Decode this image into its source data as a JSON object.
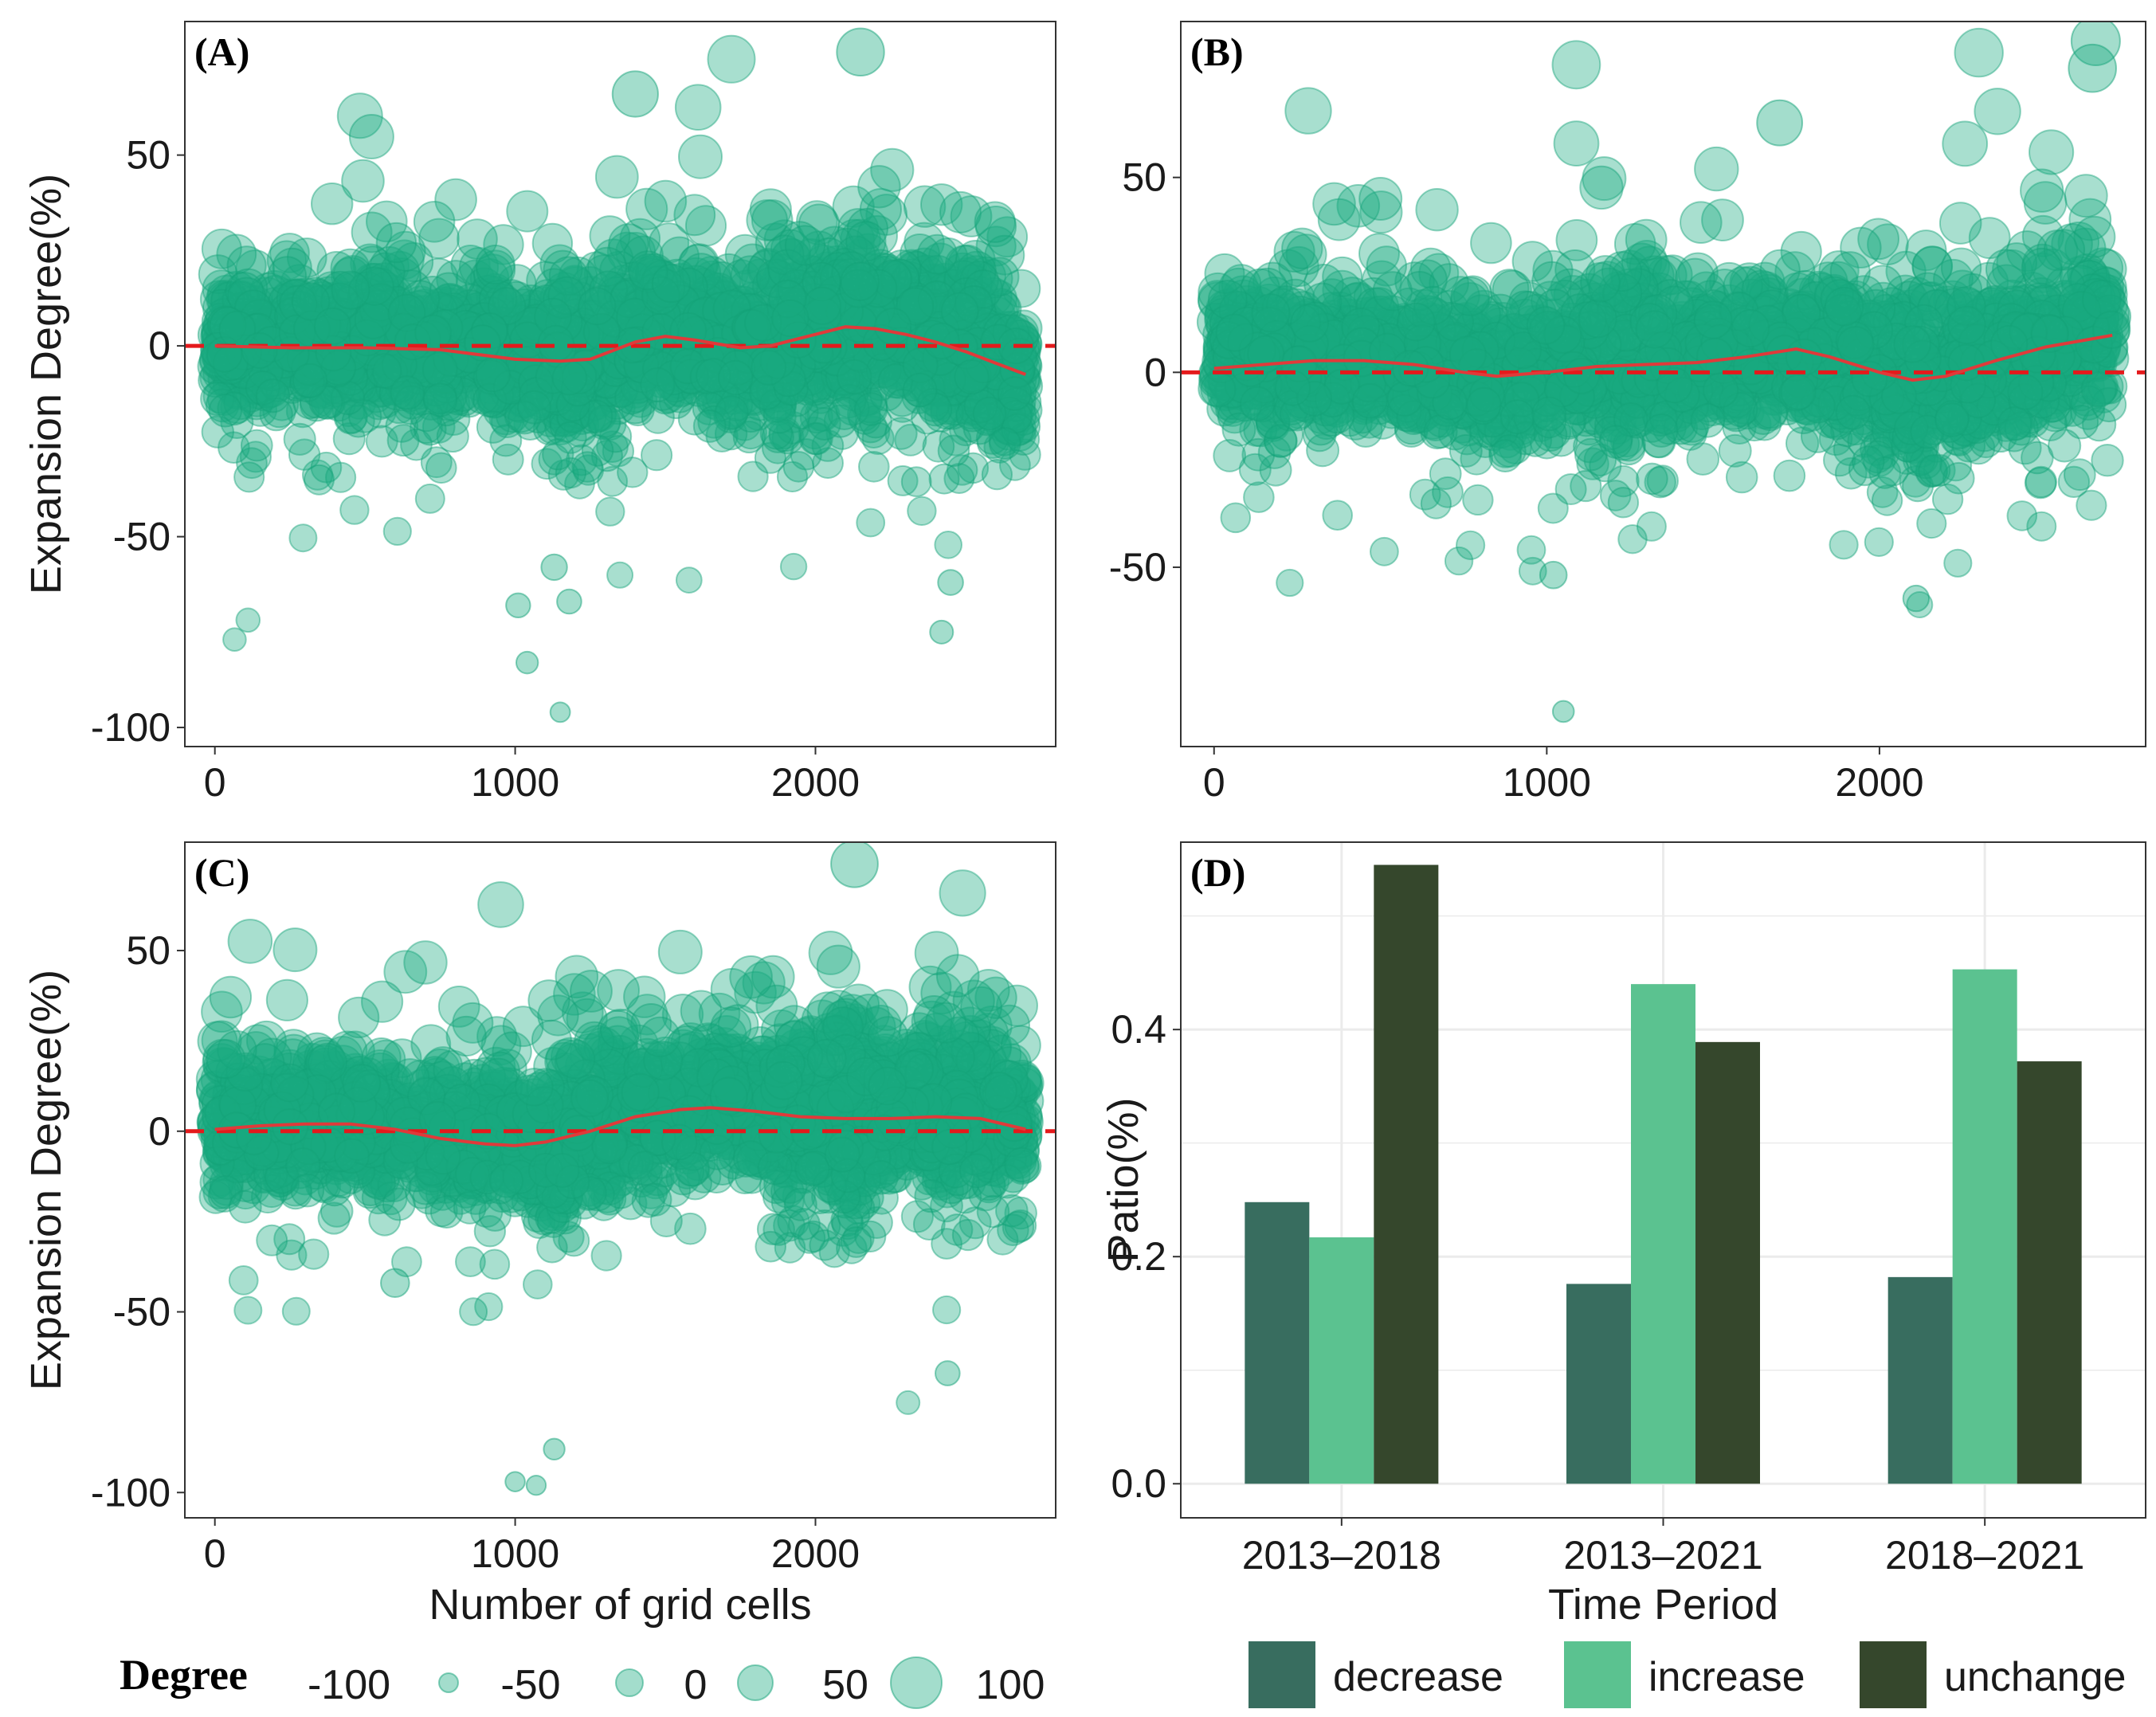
{
  "colors": {
    "point_fill": "#1aab80",
    "point_stroke": "#14a278",
    "smooth_line": "#e03a3a",
    "zero_line": "#e41a1c",
    "decrease": "#386d5f",
    "increase": "#5bc290",
    "unchange": "#35472c",
    "grid": "#ebebeb"
  },
  "chart_data": [
    {
      "type": "scatter",
      "panel_label": "(A)",
      "ylabel": "Expansion Degree(%)",
      "xlabel": "",
      "xlim": [
        -100,
        2800
      ],
      "ylim": [
        -105,
        85
      ],
      "xticks": [
        0,
        1000,
        2000
      ],
      "yticks": [
        -100,
        -50,
        0,
        50
      ],
      "reference_line_y": 0,
      "n_points": 2700,
      "smooth": {
        "x": [
          0,
          250,
          500,
          750,
          1000,
          1150,
          1250,
          1400,
          1500,
          1600,
          1750,
          1850,
          2000,
          2100,
          2200,
          2300,
          2400,
          2500,
          2600,
          2700
        ],
        "y": [
          0,
          -0.5,
          -0.5,
          -1,
          -3.5,
          -4,
          -3.5,
          1,
          2.5,
          1.5,
          -0.5,
          0,
          3,
          5,
          4.5,
          3,
          1,
          -1.5,
          -4.5,
          -7.5
        ]
      },
      "outliers": [
        {
          "x": 1150,
          "y": -96
        },
        {
          "x": 1040,
          "y": -83
        },
        {
          "x": 1010,
          "y": -68
        },
        {
          "x": 1130,
          "y": -58
        },
        {
          "x": 2420,
          "y": -75
        },
        {
          "x": 2150,
          "y": 77
        },
        {
          "x": 1400,
          "y": 66
        },
        {
          "x": 1180,
          "y": -67
        },
        {
          "x": 2450,
          "y": -62
        }
      ]
    },
    {
      "type": "scatter",
      "panel_label": "(B)",
      "ylabel": "",
      "xlabel": "",
      "xlim": [
        -100,
        2800
      ],
      "ylim": [
        -96,
        90
      ],
      "xticks": [
        0,
        1000,
        2000
      ],
      "yticks": [
        -50,
        0,
        50
      ],
      "reference_line_y": 0,
      "n_points": 2700,
      "smooth": {
        "x": [
          0,
          150,
          300,
          450,
          600,
          750,
          850,
          1000,
          1150,
          1300,
          1450,
          1600,
          1750,
          1850,
          2000,
          2100,
          2200,
          2350,
          2500,
          2700
        ],
        "y": [
          1,
          2,
          3,
          3,
          2,
          0,
          -1,
          0,
          1.5,
          2,
          2.5,
          4,
          6,
          4,
          0,
          -2,
          -1,
          3,
          6.5,
          9.5
        ]
      },
      "outliers": [
        {
          "x": 1050,
          "y": -87
        },
        {
          "x": 2650,
          "y": 85
        },
        {
          "x": 2640,
          "y": 78
        },
        {
          "x": 2110,
          "y": -58
        },
        {
          "x": 1020,
          "y": -52
        },
        {
          "x": 1700,
          "y": 64
        }
      ]
    },
    {
      "type": "scatter",
      "panel_label": "(C)",
      "ylabel": "Expansion Degree(%)",
      "xlabel": "Number of grid cells",
      "xlim": [
        -100,
        2800
      ],
      "ylim": [
        -107,
        80
      ],
      "xticks": [
        0,
        1000,
        2000
      ],
      "yticks": [
        -100,
        -50,
        0,
        50
      ],
      "reference_line_y": 0,
      "n_points": 2700,
      "smooth": {
        "x": [
          0,
          150,
          300,
          450,
          600,
          750,
          900,
          1000,
          1100,
          1250,
          1400,
          1550,
          1650,
          1800,
          1950,
          2100,
          2250,
          2400,
          2550,
          2700
        ],
        "y": [
          0.5,
          1.5,
          2,
          2,
          0.5,
          -2,
          -3.5,
          -4,
          -3,
          0,
          4,
          6,
          6.5,
          5.5,
          4,
          3.5,
          3.5,
          4,
          3.5,
          0.5
        ]
      },
      "outliers": [
        {
          "x": 1070,
          "y": -98
        },
        {
          "x": 1000,
          "y": -97
        },
        {
          "x": 2130,
          "y": 74
        },
        {
          "x": 1130,
          "y": -88
        },
        {
          "x": 2440,
          "y": -67
        },
        {
          "x": 600,
          "y": -42
        }
      ]
    },
    {
      "type": "bar",
      "panel_label": "(D)",
      "xlabel": "Time Period",
      "ylabel": "Patio(%)",
      "ylim": [
        -0.03,
        0.565
      ],
      "yticks": [
        "0.0",
        "0.2",
        "0.4"
      ],
      "categories": [
        "2013–2018",
        "2013–2021",
        "2018–2021"
      ],
      "series": [
        {
          "name": "decrease",
          "values": [
            0.248,
            0.176,
            0.182
          ]
        },
        {
          "name": "increase",
          "values": [
            0.217,
            0.44,
            0.453
          ]
        },
        {
          "name": "unchange",
          "values": [
            0.545,
            0.389,
            0.372
          ]
        }
      ]
    }
  ],
  "size_legend": {
    "title": "Degree",
    "labels": [
      "-100",
      "-50",
      "0",
      "50",
      "100"
    ],
    "values": [
      -100,
      -50,
      0,
      50,
      100
    ]
  },
  "fill_legend": {
    "labels": [
      "decrease",
      "increase",
      "unchange"
    ]
  }
}
